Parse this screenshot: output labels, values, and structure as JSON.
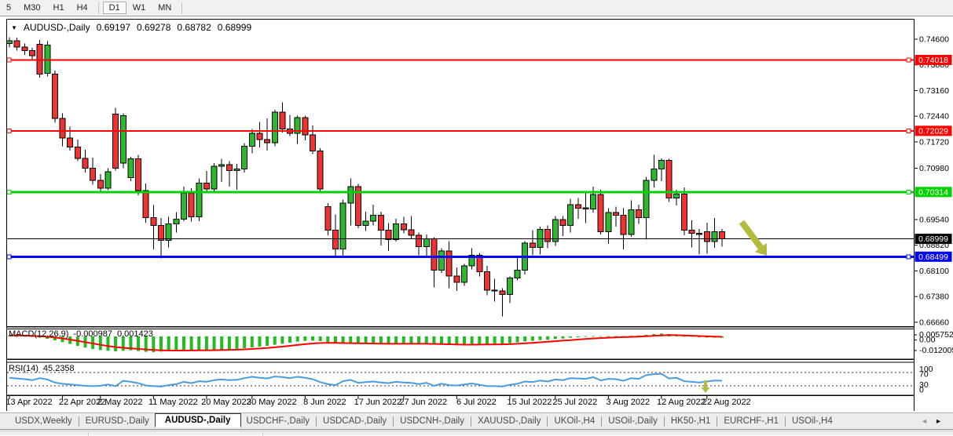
{
  "toolbar": {
    "timeframes": [
      {
        "label": "5",
        "active": false
      },
      {
        "label": "M30",
        "active": false
      },
      {
        "label": "H1",
        "active": false
      },
      {
        "label": "H4",
        "active": false
      },
      {
        "label": "D1",
        "active": true
      },
      {
        "label": "W1",
        "active": false
      },
      {
        "label": "MN",
        "active": false
      }
    ]
  },
  "window_title": {
    "dropdown_icon": "▼",
    "symbol": "AUDUSD-,Daily",
    "open": "0.69197",
    "high": "0.69278",
    "low": "0.68782",
    "close": "0.68999"
  },
  "indicators": {
    "macd": {
      "name": "MACD(12,26,9)",
      "value": "-0.000987",
      "signal_value": "0.001423",
      "scale": [
        "0.005752",
        "0.00",
        "-0.012005"
      ]
    },
    "rsi": {
      "name": "RSI(14)",
      "value": "45.2358",
      "scale": [
        "100",
        "70",
        "30",
        "0"
      ],
      "levels": [
        70,
        30
      ]
    }
  },
  "price_axis": {
    "ticks": [
      "0.74600",
      "0.73880",
      "0.73160",
      "0.72440",
      "0.71720",
      "0.70980",
      "0.69540",
      "0.68820",
      "0.68100",
      "0.67380",
      "0.66660"
    ]
  },
  "levels": [
    {
      "price": 0.74018,
      "label": "0.74018",
      "color": "#ff0000",
      "width": 2.2
    },
    {
      "price": 0.72029,
      "label": "0.72029",
      "color": "#ff0000",
      "width": 2.2
    },
    {
      "price": 0.70314,
      "label": "0.70314",
      "color": "#00d300",
      "width": 3
    },
    {
      "price": 0.68999,
      "label": "0.68999",
      "color": "#000000",
      "width": 1
    },
    {
      "price": 0.68499,
      "label": "0.68499",
      "color": "#0000ff",
      "width": 3
    }
  ],
  "date_axis": [
    {
      "label": "13 Apr 2022",
      "bar": 1
    },
    {
      "label": "22 Apr 2022",
      "bar": 8
    },
    {
      "label": "2 May 2022",
      "bar": 13
    },
    {
      "label": "11 May 2022",
      "bar": 20
    },
    {
      "label": "20 May 2022",
      "bar": 27
    },
    {
      "label": "30 May 2022",
      "bar": 33
    },
    {
      "label": "8 Jun 2022",
      "bar": 40
    },
    {
      "label": "17 Jun 2022",
      "bar": 47
    },
    {
      "label": "27 Jun 2022",
      "bar": 53
    },
    {
      "label": "6 Jul 2022",
      "bar": 60
    },
    {
      "label": "15 Jul 2022",
      "bar": 67
    },
    {
      "label": "25 Jul 2022",
      "bar": 73
    },
    {
      "label": "3 Aug 2022",
      "bar": 80
    },
    {
      "label": "12 Aug 2022",
      "bar": 87
    },
    {
      "label": "22 Aug 2022",
      "bar": 93
    }
  ],
  "chart_data": {
    "type": "candlestick",
    "symbol": "AUDUSD",
    "timeframe": "Daily",
    "ylim": [
      0.6666,
      0.7466
    ],
    "colors": {
      "bull": "#2eb82e",
      "bear": "#ef3232",
      "wick": "#000000",
      "macd_hist": "#22bb22",
      "macd_signal": "#ff0000",
      "rsi_line": "#4a9be0",
      "annotation": "#b2bb3b"
    },
    "ohlc": [
      [
        0.7448,
        0.7466,
        0.7437,
        0.7456
      ],
      [
        0.7456,
        0.7464,
        0.7428,
        0.7438
      ],
      [
        0.7438,
        0.7448,
        0.7416,
        0.7428
      ],
      [
        0.7428,
        0.7436,
        0.7404,
        0.7414
      ],
      [
        0.7446,
        0.7458,
        0.7352,
        0.7362
      ],
      [
        0.7364,
        0.7455,
        0.7355,
        0.7443
      ],
      [
        0.7362,
        0.7372,
        0.7226,
        0.7238
      ],
      [
        0.7238,
        0.7252,
        0.716,
        0.7183
      ],
      [
        0.7183,
        0.7215,
        0.7148,
        0.7158
      ],
      [
        0.7158,
        0.7178,
        0.7118,
        0.7126
      ],
      [
        0.7126,
        0.715,
        0.7086,
        0.7098
      ],
      [
        0.7098,
        0.7128,
        0.7052,
        0.7064
      ],
      [
        0.7064,
        0.7082,
        0.7029,
        0.7042
      ],
      [
        0.7042,
        0.7098,
        0.7036,
        0.7088
      ],
      [
        0.725,
        0.7268,
        0.7092,
        0.7098
      ],
      [
        0.7112,
        0.7252,
        0.7098,
        0.7246
      ],
      [
        0.7072,
        0.713,
        0.7062,
        0.7124
      ],
      [
        0.7124,
        0.7136,
        0.7022,
        0.7035
      ],
      [
        0.7035,
        0.7055,
        0.6945,
        0.696
      ],
      [
        0.696,
        0.6995,
        0.687,
        0.6938
      ],
      [
        0.6938,
        0.6958,
        0.6845,
        0.6896
      ],
      [
        0.6896,
        0.6962,
        0.6876,
        0.6942
      ],
      [
        0.6942,
        0.6975,
        0.6918,
        0.6955
      ],
      [
        0.6955,
        0.7046,
        0.695,
        0.7028
      ],
      [
        0.7028,
        0.7042,
        0.6948,
        0.6962
      ],
      [
        0.6962,
        0.707,
        0.695,
        0.7056
      ],
      [
        0.7056,
        0.709,
        0.7028,
        0.704
      ],
      [
        0.704,
        0.7112,
        0.7034,
        0.7104
      ],
      [
        0.7104,
        0.7125,
        0.706,
        0.7108
      ],
      [
        0.7108,
        0.7118,
        0.7046,
        0.7092
      ],
      [
        0.7092,
        0.711,
        0.7038,
        0.7096
      ],
      [
        0.7096,
        0.7168,
        0.7086,
        0.716
      ],
      [
        0.716,
        0.7208,
        0.714,
        0.7196
      ],
      [
        0.7196,
        0.7228,
        0.7156,
        0.7178
      ],
      [
        0.7178,
        0.7238,
        0.7148,
        0.717
      ],
      [
        0.717,
        0.7262,
        0.716,
        0.7255
      ],
      [
        0.7255,
        0.7283,
        0.7198,
        0.7208
      ],
      [
        0.7208,
        0.7248,
        0.7188,
        0.7196
      ],
      [
        0.7196,
        0.7245,
        0.7166,
        0.724
      ],
      [
        0.724,
        0.7246,
        0.7176,
        0.7192
      ],
      [
        0.7192,
        0.7218,
        0.7138,
        0.7146
      ],
      [
        0.7146,
        0.7154,
        0.7034,
        0.704
      ],
      [
        0.699,
        0.7,
        0.691,
        0.6924
      ],
      [
        0.6924,
        0.6968,
        0.685,
        0.6872
      ],
      [
        0.6872,
        0.701,
        0.6852,
        0.7
      ],
      [
        0.7,
        0.7069,
        0.6938,
        0.7046
      ],
      [
        0.7046,
        0.7054,
        0.693,
        0.6938
      ],
      [
        0.6938,
        0.6976,
        0.6922,
        0.695
      ],
      [
        0.695,
        0.6996,
        0.6938,
        0.6966
      ],
      [
        0.6966,
        0.6976,
        0.6881,
        0.6924
      ],
      [
        0.6924,
        0.6944,
        0.6866,
        0.6898
      ],
      [
        0.6898,
        0.6956,
        0.6892,
        0.6942
      ],
      [
        0.6942,
        0.6962,
        0.6916,
        0.6925
      ],
      [
        0.6925,
        0.6964,
        0.69,
        0.691
      ],
      [
        0.691,
        0.6918,
        0.6854,
        0.6878
      ],
      [
        0.6878,
        0.6912,
        0.685,
        0.69
      ],
      [
        0.69,
        0.6904,
        0.6764,
        0.6812
      ],
      [
        0.6812,
        0.6874,
        0.6804,
        0.6866
      ],
      [
        0.6866,
        0.6894,
        0.6762,
        0.6796
      ],
      [
        0.6796,
        0.682,
        0.6754,
        0.6778
      ],
      [
        0.6778,
        0.683,
        0.6768,
        0.6824
      ],
      [
        0.6824,
        0.6874,
        0.6814,
        0.6854
      ],
      [
        0.6854,
        0.686,
        0.6794,
        0.6808
      ],
      [
        0.6808,
        0.6824,
        0.6742,
        0.6756
      ],
      [
        0.6756,
        0.6788,
        0.6724,
        0.6754
      ],
      [
        0.6754,
        0.6762,
        0.6682,
        0.6744
      ],
      [
        0.6744,
        0.6794,
        0.672,
        0.679
      ],
      [
        0.679,
        0.685,
        0.6784,
        0.6812
      ],
      [
        0.6812,
        0.6894,
        0.68,
        0.6888
      ],
      [
        0.6888,
        0.6924,
        0.6854,
        0.6876
      ],
      [
        0.6876,
        0.6934,
        0.6856,
        0.6926
      ],
      [
        0.6926,
        0.6938,
        0.6874,
        0.6892
      ],
      [
        0.6892,
        0.6964,
        0.688,
        0.6954
      ],
      [
        0.6954,
        0.6964,
        0.6908,
        0.6938
      ],
      [
        0.6938,
        0.7012,
        0.6918,
        0.6996
      ],
      [
        0.6996,
        0.7014,
        0.6956,
        0.6986
      ],
      [
        0.6986,
        0.7032,
        0.6944,
        0.6984
      ],
      [
        0.6984,
        0.7046,
        0.6974,
        0.7024
      ],
      [
        0.7024,
        0.7038,
        0.6912,
        0.692
      ],
      [
        0.692,
        0.6986,
        0.6886,
        0.6974
      ],
      [
        0.6974,
        0.699,
        0.6934,
        0.6966
      ],
      [
        0.6966,
        0.6986,
        0.687,
        0.6912
      ],
      [
        0.6912,
        0.7008,
        0.6906,
        0.6982
      ],
      [
        0.6982,
        0.6996,
        0.6942,
        0.696
      ],
      [
        0.696,
        0.7074,
        0.6898,
        0.7064
      ],
      [
        0.7064,
        0.7136,
        0.7044,
        0.7096
      ],
      [
        0.7096,
        0.7126,
        0.7062,
        0.712
      ],
      [
        0.712,
        0.7125,
        0.7004,
        0.7014
      ],
      [
        0.7014,
        0.7038,
        0.6994,
        0.7026
      ],
      [
        0.7026,
        0.7044,
        0.691,
        0.6924
      ],
      [
        0.6924,
        0.6952,
        0.6876,
        0.6916
      ],
      [
        0.6916,
        0.6928,
        0.6856,
        0.6912
      ],
      [
        0.692,
        0.6945,
        0.6858,
        0.6892
      ],
      [
        0.6892,
        0.6958,
        0.6875,
        0.692
      ],
      [
        0.69197,
        0.69278,
        0.68782,
        0.68999
      ]
    ],
    "macd_hist": [
      0.0008,
      0.0004,
      0.0,
      -0.0004,
      -0.001,
      -0.0018,
      -0.003,
      -0.0044,
      -0.0058,
      -0.0072,
      -0.0085,
      -0.0096,
      -0.0104,
      -0.011,
      -0.0114,
      -0.011,
      -0.0106,
      -0.0112,
      -0.0118,
      -0.012,
      -0.0116,
      -0.0112,
      -0.011,
      -0.0108,
      -0.0106,
      -0.0105,
      -0.0104,
      -0.0102,
      -0.01,
      -0.0098,
      -0.0095,
      -0.009,
      -0.0084,
      -0.0078,
      -0.0072,
      -0.0064,
      -0.0056,
      -0.0048,
      -0.004,
      -0.0034,
      -0.0032,
      -0.0036,
      -0.0044,
      -0.0052,
      -0.0056,
      -0.0054,
      -0.0056,
      -0.0058,
      -0.0058,
      -0.0059,
      -0.006,
      -0.0058,
      -0.0057,
      -0.0056,
      -0.0057,
      -0.0056,
      -0.0062,
      -0.0063,
      -0.0066,
      -0.0068,
      -0.0067,
      -0.0063,
      -0.006,
      -0.0061,
      -0.006,
      -0.0058,
      -0.0052,
      -0.0046,
      -0.0038,
      -0.0034,
      -0.0028,
      -0.0026,
      -0.002,
      -0.0016,
      -0.001,
      -0.0006,
      -0.0004,
      0.0002,
      0.0,
      0.0002,
      0.0003,
      0.0001,
      0.0005,
      0.0007,
      0.0012,
      0.0018,
      0.0022,
      0.0018,
      0.0008,
      0.0,
      -0.0004,
      -0.0007,
      -0.0009,
      -0.001,
      -0.000987
    ],
    "rsi": [
      54,
      52,
      50,
      47,
      53,
      49,
      40,
      36,
      34,
      32,
      30,
      29,
      30,
      34,
      29,
      45,
      42,
      38,
      31,
      29,
      28,
      32,
      35,
      42,
      38,
      44,
      42,
      47,
      49,
      47,
      48,
      53,
      57,
      54,
      52,
      58,
      56,
      53,
      57,
      54,
      50,
      41,
      35,
      32,
      44,
      48,
      39,
      41,
      43,
      40,
      38,
      42,
      40,
      39,
      35,
      39,
      30,
      36,
      32,
      31,
      34,
      37,
      33,
      29,
      29,
      28,
      33,
      36,
      43,
      41,
      46,
      43,
      49,
      47,
      53,
      52,
      51,
      56,
      46,
      51,
      50,
      45,
      53,
      51,
      62,
      65,
      66,
      52,
      54,
      44,
      42,
      40,
      43,
      46,
      45.24
    ]
  },
  "annotations": {
    "trend_arrow": {
      "description": "large olive arrow pointing down-right at blue support line",
      "color": "#b2bb3b"
    },
    "rsi_arrow": {
      "description": "small olive down arrow under RSI line",
      "color": "#b2bb3b"
    }
  },
  "tabs": {
    "items": [
      {
        "label": "USDX,Weekly",
        "active": false
      },
      {
        "label": "EURUSD-,Daily",
        "active": false
      },
      {
        "label": "AUDUSD-,Daily",
        "active": true
      },
      {
        "label": "USDCHF-,Daily",
        "active": false
      },
      {
        "label": "USDCAD-,Daily",
        "active": false
      },
      {
        "label": "USDCNH-,Daily",
        "active": false
      },
      {
        "label": "XAUUSD-,Daily",
        "active": false
      },
      {
        "label": "UKOil-,H4",
        "active": false
      },
      {
        "label": "USOil-,Daily",
        "active": false
      },
      {
        "label": "HK50-,H1",
        "active": false
      },
      {
        "label": "EURCHF-,H1",
        "active": false
      },
      {
        "label": "USOil-,H4",
        "active": false
      }
    ],
    "scroll_left": "◄",
    "scroll_right": "►"
  }
}
